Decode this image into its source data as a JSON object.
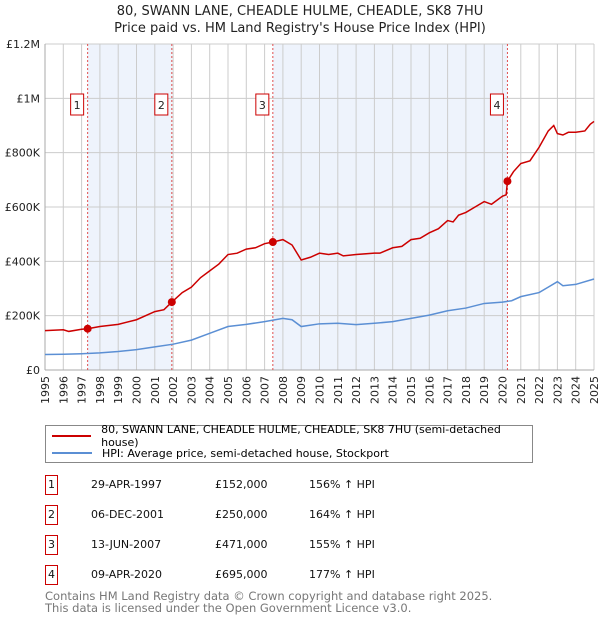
{
  "title_line1": "80, SWANN LANE, CHEADLE HULME, CHEADLE, SK8 7HU",
  "title_line2": "Price paid vs. HM Land Registry's House Price Index (HPI)",
  "chart_data": {
    "type": "line",
    "title": "80, SWANN LANE, CHEADLE HULME, CHEADLE, SK8 7HU — Price paid vs. HM Land Registry's House Price Index (HPI)",
    "xlim": [
      1995,
      2025
    ],
    "ylim": [
      0,
      1200000
    ],
    "y_ticks": [
      {
        "v": 0,
        "label": "£0"
      },
      {
        "v": 200000,
        "label": "£200K"
      },
      {
        "v": 400000,
        "label": "£400K"
      },
      {
        "v": 600000,
        "label": "£600K"
      },
      {
        "v": 800000,
        "label": "£800K"
      },
      {
        "v": 1000000,
        "label": "£1M"
      },
      {
        "v": 1200000,
        "label": "£1.2M"
      }
    ],
    "x_ticks": [
      "1995",
      "1996",
      "1997",
      "1998",
      "1999",
      "2000",
      "2001",
      "2002",
      "2003",
      "2004",
      "2005",
      "2006",
      "2007",
      "2008",
      "2009",
      "2010",
      "2011",
      "2012",
      "2013",
      "2014",
      "2015",
      "2016",
      "2017",
      "2018",
      "2019",
      "2020",
      "2021",
      "2022",
      "2023",
      "2024",
      "2025"
    ],
    "grid": true,
    "colors": {
      "property": "#cc0000",
      "hpi": "#5b8fd4",
      "shade": "#eef3fc"
    },
    "series": [
      {
        "name": "80, SWANN LANE, CHEADLE HULME, CHEADLE, SK8 7HU (semi-detached house)",
        "points": [
          [
            1995,
            145
          ],
          [
            1996,
            148
          ],
          [
            1996.3,
            142
          ],
          [
            1997,
            150
          ],
          [
            1997.33,
            152
          ],
          [
            1998,
            160
          ],
          [
            1999,
            168
          ],
          [
            2000,
            185
          ],
          [
            2001,
            215
          ],
          [
            2001.5,
            222
          ],
          [
            2001.93,
            250
          ],
          [
            2002.5,
            285
          ],
          [
            2003,
            305
          ],
          [
            2003.5,
            340
          ],
          [
            2004,
            365
          ],
          [
            2004.5,
            390
          ],
          [
            2005,
            425
          ],
          [
            2005.5,
            430
          ],
          [
            2006,
            445
          ],
          [
            2006.5,
            450
          ],
          [
            2007,
            465
          ],
          [
            2007.45,
            471
          ],
          [
            2008,
            480
          ],
          [
            2008.5,
            460
          ],
          [
            2009,
            405
          ],
          [
            2009.5,
            415
          ],
          [
            2010,
            430
          ],
          [
            2010.5,
            425
          ],
          [
            2011,
            430
          ],
          [
            2011.3,
            420
          ],
          [
            2012,
            425
          ],
          [
            2013,
            430
          ],
          [
            2013.3,
            430
          ],
          [
            2014,
            450
          ],
          [
            2014.5,
            455
          ],
          [
            2015,
            480
          ],
          [
            2015.5,
            485
          ],
          [
            2016,
            505
          ],
          [
            2016.5,
            520
          ],
          [
            2017,
            550
          ],
          [
            2017.3,
            545
          ],
          [
            2017.6,
            570
          ],
          [
            2018,
            580
          ],
          [
            2018.5,
            600
          ],
          [
            2019,
            620
          ],
          [
            2019.4,
            610
          ],
          [
            2020,
            640
          ],
          [
            2020.2,
            645
          ],
          [
            2020.27,
            695
          ],
          [
            2020.6,
            730
          ],
          [
            2021,
            760
          ],
          [
            2021.5,
            770
          ],
          [
            2022,
            820
          ],
          [
            2022.5,
            880
          ],
          [
            2022.8,
            900
          ],
          [
            2023,
            870
          ],
          [
            2023.3,
            865
          ],
          [
            2023.6,
            875
          ],
          [
            2024,
            875
          ],
          [
            2024.5,
            880
          ],
          [
            2024.8,
            905
          ],
          [
            2025,
            915
          ]
        ]
      },
      {
        "name": "HPI: Average price, semi-detached house, Stockport",
        "points": [
          [
            1995,
            57
          ],
          [
            1996,
            58
          ],
          [
            1997,
            60
          ],
          [
            1998,
            63
          ],
          [
            1999,
            68
          ],
          [
            2000,
            75
          ],
          [
            2001,
            85
          ],
          [
            2002,
            95
          ],
          [
            2003,
            110
          ],
          [
            2004,
            135
          ],
          [
            2005,
            160
          ],
          [
            2006,
            168
          ],
          [
            2007,
            178
          ],
          [
            2008,
            190
          ],
          [
            2008.5,
            185
          ],
          [
            2009,
            160
          ],
          [
            2010,
            170
          ],
          [
            2011,
            172
          ],
          [
            2012,
            167
          ],
          [
            2013,
            172
          ],
          [
            2014,
            178
          ],
          [
            2015,
            190
          ],
          [
            2016,
            202
          ],
          [
            2017,
            218
          ],
          [
            2018,
            228
          ],
          [
            2019,
            245
          ],
          [
            2020,
            250
          ],
          [
            2020.5,
            255
          ],
          [
            2021,
            270
          ],
          [
            2022,
            285
          ],
          [
            2022.5,
            305
          ],
          [
            2023,
            325
          ],
          [
            2023.3,
            310
          ],
          [
            2024,
            315
          ],
          [
            2025,
            335
          ]
        ]
      }
    ],
    "value_unit": "thousands GBP",
    "sales": [
      {
        "n": "1",
        "x": 1997.33,
        "y": 152,
        "date": "29-APR-1997",
        "price": "£152,000",
        "hpi": "156% ↑ HPI"
      },
      {
        "n": "2",
        "x": 2001.93,
        "y": 250,
        "date": "06-DEC-2001",
        "price": "£250,000",
        "hpi": "164% ↑ HPI"
      },
      {
        "n": "3",
        "x": 2007.45,
        "y": 471,
        "date": "13-JUN-2007",
        "price": "£471,000",
        "hpi": "155% ↑ HPI"
      },
      {
        "n": "4",
        "x": 2020.27,
        "y": 695,
        "date": "09-APR-2020",
        "price": "£695,000",
        "hpi": "177% ↑ HPI"
      }
    ]
  },
  "legend": {
    "property": "80, SWANN LANE, CHEADLE HULME, CHEADLE, SK8 7HU (semi-detached house)",
    "hpi": "HPI: Average price, semi-detached house, Stockport"
  },
  "footer": {
    "line1": "Contains HM Land Registry data © Crown copyright and database right 2025.",
    "line2": "This data is licensed under the Open Government Licence v3.0."
  }
}
